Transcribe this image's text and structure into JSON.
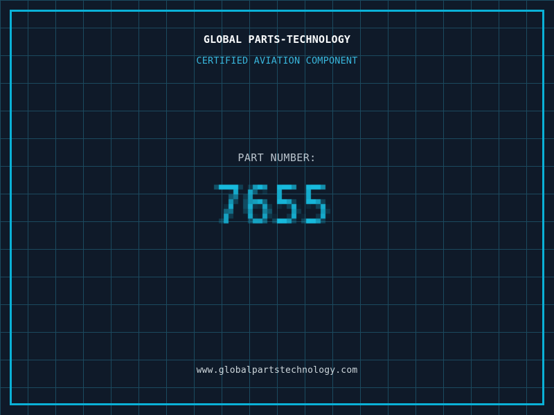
{
  "header": {
    "company": "GLOBAL PARTS-TECHNOLOGY",
    "subtitle": "CERTIFIED AVIATION COMPONENT"
  },
  "part": {
    "label": "PART NUMBER:",
    "number": "7655"
  },
  "footer": {
    "url": "www.globalpartstechnology.com"
  },
  "colors": {
    "background": "#0f1a29",
    "grid_line": "#1b4a5f",
    "frame": "#0ab1d7",
    "company_text": "#f8fafb",
    "subtitle_text": "#38b6dc",
    "label_text": "#b9c3cc",
    "part_number": "#17badd",
    "url_text": "#ccd5da"
  }
}
